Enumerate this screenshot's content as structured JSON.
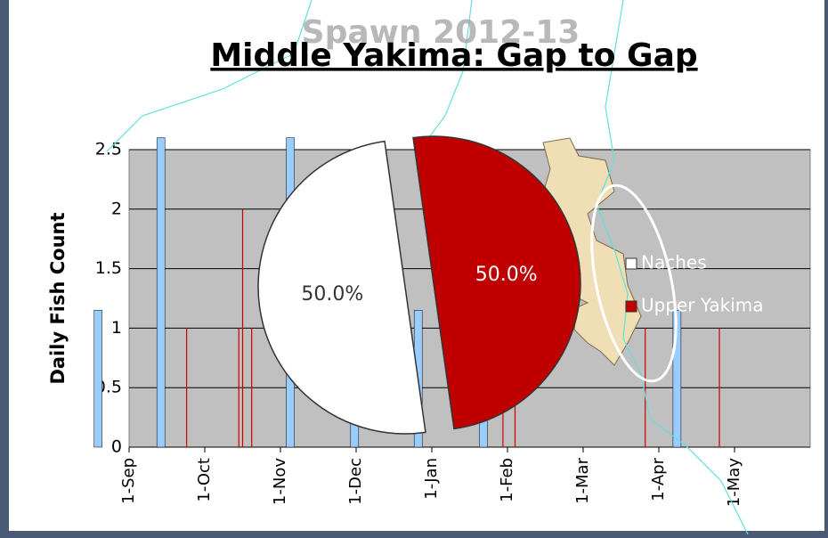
{
  "overlay_text": "Spawn 2012-13",
  "chart_data": [
    {
      "type": "bar",
      "title": "Middle Yakima: Gap to Gap",
      "y_label": "Daily Fish Count",
      "ylim": [
        0,
        2.5
      ],
      "yticks": [
        0,
        0.5,
        1,
        1.5,
        2,
        2.5
      ],
      "xlim": [
        0,
        9
      ],
      "xticks": [
        {
          "value": 0,
          "label": "1-Sep"
        },
        {
          "value": 1,
          "label": "1-Oct"
        },
        {
          "value": 2,
          "label": "1-Nov"
        },
        {
          "value": 3,
          "label": "1-Dec"
        },
        {
          "value": 4,
          "label": "1-Jan"
        },
        {
          "value": 5,
          "label": "1-Feb"
        },
        {
          "value": 6,
          "label": "1-Mar"
        },
        {
          "value": 7,
          "label": "1-Apr"
        },
        {
          "value": 8,
          "label": "1-May"
        }
      ],
      "grid": true,
      "series": [
        {
          "color": "#99ccff",
          "width": "wide",
          "x": [
            -0.41,
            0.42,
            2.13,
            2.98,
            3.82,
            4.68,
            7.24
          ],
          "values": [
            1.15,
            2.6,
            2.6,
            1,
            1.15,
            1,
            1.15
          ]
        },
        {
          "color": "#cc0000",
          "width": "thin",
          "x": [
            0.76,
            1.45,
            1.5,
            1.62,
            4.94,
            5.1,
            6.82,
            7.8
          ],
          "values": [
            1,
            1,
            2,
            1,
            1,
            0.5,
            1,
            1
          ]
        }
      ]
    },
    {
      "type": "pie",
      "categories": [
        "Naches",
        "Upper Yakima"
      ],
      "values": [
        50,
        50
      ],
      "value_labels": [
        "50.0%",
        "50.0%"
      ],
      "colors": [
        "#ffffff",
        "#c00000"
      ]
    }
  ]
}
